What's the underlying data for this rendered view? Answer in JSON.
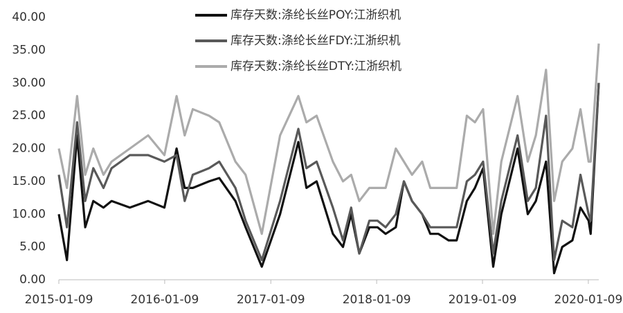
{
  "chart_data": {
    "type": "line",
    "x": [
      "2015-01-09",
      "2015-02-06",
      "2015-03-13",
      "2015-04-10",
      "2015-05-08",
      "2015-06-12",
      "2015-07-10",
      "2015-09-11",
      "2015-11-13",
      "2016-01-08",
      "2016-02-19",
      "2016-03-18",
      "2016-04-15",
      "2016-06-10",
      "2016-07-15",
      "2016-09-09",
      "2016-10-14",
      "2016-12-09",
      "2017-02-10",
      "2017-04-14",
      "2017-05-12",
      "2017-06-16",
      "2017-08-11",
      "2017-09-15",
      "2017-10-13",
      "2017-11-10",
      "2017-12-15",
      "2018-01-12",
      "2018-02-09",
      "2018-03-16",
      "2018-04-13",
      "2018-05-11",
      "2018-06-15",
      "2018-07-13",
      "2018-08-10",
      "2018-09-14",
      "2018-10-12",
      "2018-11-16",
      "2018-12-14",
      "2019-01-11",
      "2019-02-15",
      "2019-03-15",
      "2019-05-10",
      "2019-06-14",
      "2019-07-12",
      "2019-08-16",
      "2019-09-13",
      "2019-10-11",
      "2019-11-15",
      "2019-12-13",
      "2020-01-10",
      "2020-01-17",
      "2020-02-14"
    ],
    "series": [
      {
        "name": "库存天数:涤纶长丝POY:江浙织机",
        "color": "#111111",
        "values": [
          10,
          3,
          22,
          8,
          12,
          11,
          12,
          11,
          12,
          11,
          20,
          14,
          14,
          15,
          15.5,
          12,
          8,
          2,
          10,
          21,
          14,
          15,
          7,
          5,
          10,
          4,
          8,
          8,
          7,
          8,
          15,
          12,
          10,
          7,
          7,
          6,
          6,
          12,
          14,
          17,
          2,
          10,
          20,
          10,
          12,
          18,
          1,
          5,
          6,
          11,
          9,
          7,
          30
        ]
      },
      {
        "name": "库存天数:涤纶长丝FDY:江浙织机",
        "color": "#595959",
        "values": [
          16,
          8,
          24,
          12,
          17,
          14,
          17,
          19,
          19,
          18,
          19,
          12,
          16,
          17,
          18,
          14,
          9,
          3,
          12,
          23,
          17,
          18,
          11,
          6,
          11,
          4,
          9,
          9,
          8,
          10,
          15,
          12,
          10,
          8,
          8,
          8,
          8,
          15,
          16,
          18,
          4,
          12,
          22,
          12,
          14,
          25,
          3,
          9,
          8,
          16,
          10,
          9,
          30
        ]
      },
      {
        "name": "库存天数:涤纶长丝DTY:江浙织机",
        "color": "#ababab",
        "values": [
          20,
          14,
          28,
          16,
          20,
          16,
          18,
          20,
          22,
          19,
          28,
          22,
          26,
          25,
          24,
          18,
          16,
          7,
          22,
          28,
          24,
          25,
          18,
          15,
          16,
          12,
          14,
          14,
          14,
          20,
          18,
          16,
          18,
          14,
          14,
          14,
          14,
          25,
          24,
          26,
          7,
          18,
          28,
          18,
          22,
          32,
          12,
          18,
          20,
          26,
          18,
          18,
          36
        ]
      }
    ],
    "xlim": [
      "2015-01-09",
      "2020-02-14"
    ],
    "xticks": [
      "2015-01-09",
      "2016-01-09",
      "2017-01-09",
      "2018-01-09",
      "2019-01-09",
      "2020-01-09"
    ],
    "ylim": [
      0,
      40
    ],
    "yticks": [
      {
        "value": 0,
        "label": "0.00"
      },
      {
        "value": 5,
        "label": "5.00"
      },
      {
        "value": 10,
        "label": "10.00"
      },
      {
        "value": 15,
        "label": "15.00"
      },
      {
        "value": 20,
        "label": "20.00"
      },
      {
        "value": 25,
        "label": "25.00"
      },
      {
        "value": 30,
        "label": "30.00"
      },
      {
        "value": 35,
        "label": "35.00"
      },
      {
        "value": 40,
        "label": "40.00"
      }
    ],
    "grid": false,
    "legend": "top"
  }
}
